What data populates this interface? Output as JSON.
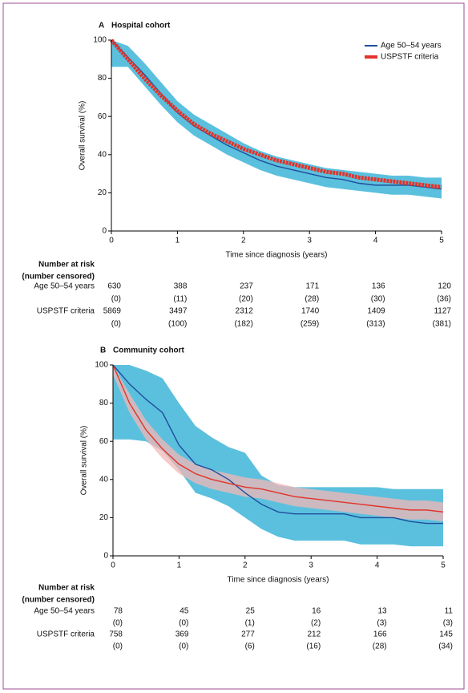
{
  "chart_data": [
    {
      "type": "line",
      "panel": "A",
      "title": "Hospital cohort",
      "x_label": "Time since diagnosis (years)",
      "y_label": "Overall survival (%)",
      "xlim": [
        0,
        5
      ],
      "ylim": [
        0,
        100
      ],
      "xticks": [
        0,
        1,
        2,
        3,
        4,
        5
      ],
      "yticks": [
        0,
        20,
        40,
        60,
        80,
        100
      ],
      "legend": "upper right",
      "x": [
        0,
        0.25,
        0.5,
        0.75,
        1,
        1.25,
        1.5,
        1.75,
        2,
        2.25,
        2.5,
        2.75,
        3,
        3.25,
        3.5,
        3.75,
        4,
        4.25,
        4.5,
        4.75,
        5
      ],
      "series": [
        {
          "name": "Age 50–54 years",
          "color": "#1f4e9c",
          "band_color": "#5bc0de",
          "values": [
            100,
            91,
            82,
            72,
            62,
            55,
            50,
            45,
            41,
            37,
            34,
            32,
            30,
            28,
            27,
            25,
            24,
            24,
            24,
            23,
            22
          ],
          "lower": [
            86,
            86,
            76,
            66,
            57,
            50,
            45,
            40,
            36,
            32,
            29,
            27,
            25,
            23,
            22,
            21,
            20,
            19,
            19,
            18,
            17
          ],
          "upper": [
            100,
            97,
            88,
            78,
            68,
            61,
            56,
            51,
            46,
            42,
            39,
            37,
            35,
            33,
            32,
            31,
            30,
            29,
            29,
            28,
            28
          ]
        },
        {
          "name": "USPSTF criteria",
          "color": "#e2332a",
          "values": [
            100,
            90,
            80,
            71,
            63,
            56,
            51,
            47,
            43,
            40,
            37,
            35,
            33,
            31,
            30,
            28,
            27,
            26,
            25,
            24,
            23
          ]
        }
      ],
      "risk_table": {
        "title": [
          "Number at risk",
          "(number censored)"
        ],
        "rows": [
          {
            "name": "Age 50–54 years",
            "at_risk": [
              630,
              388,
              237,
              171,
              136,
              120
            ],
            "censored": [
              "(0)",
              "(11)",
              "(20)",
              "(28)",
              "(30)",
              "(36)"
            ]
          },
          {
            "name": "USPSTF criteria",
            "at_risk": [
              5869,
              3497,
              2312,
              1740,
              1409,
              1127
            ],
            "censored": [
              "(0)",
              "(100)",
              "(182)",
              "(259)",
              "(313)",
              "(381)"
            ]
          }
        ]
      }
    },
    {
      "type": "line",
      "panel": "B",
      "title": "Community cohort",
      "x_label": "Time since diagnosis (years)",
      "y_label": "Overall survival (%)",
      "xlim": [
        0,
        5
      ],
      "ylim": [
        0,
        100
      ],
      "xticks": [
        0,
        1,
        2,
        3,
        4,
        5
      ],
      "yticks": [
        0,
        20,
        40,
        60,
        80,
        100
      ],
      "x": [
        0,
        0.25,
        0.5,
        0.75,
        1,
        1.25,
        1.5,
        1.75,
        2,
        2.25,
        2.5,
        2.75,
        3,
        3.25,
        3.5,
        3.75,
        4,
        4.25,
        4.5,
        4.75,
        5
      ],
      "series": [
        {
          "name": "Age 50–54 years",
          "color": "#1f4e9c",
          "band_color": "#5bc0de",
          "values": [
            100,
            90,
            82,
            75,
            58,
            48,
            45,
            40,
            33,
            27,
            23,
            22,
            22,
            22,
            22,
            20,
            20,
            20,
            18,
            17,
            17
          ],
          "lower": [
            61,
            61,
            60,
            55,
            45,
            33,
            30,
            26,
            20,
            14,
            10,
            8,
            8,
            8,
            8,
            6,
            6,
            6,
            5,
            5,
            5
          ],
          "upper": [
            100,
            100,
            97,
            93,
            80,
            68,
            62,
            57,
            54,
            42,
            37,
            36,
            36,
            36,
            36,
            36,
            36,
            35,
            35,
            35,
            35
          ]
        },
        {
          "name": "USPSTF criteria",
          "color": "#e2332a",
          "band_color": "#f2b8b5",
          "values": [
            100,
            80,
            66,
            56,
            48,
            43,
            40,
            38,
            36,
            35,
            33,
            31,
            30,
            29,
            28,
            27,
            26,
            25,
            24,
            24,
            23
          ],
          "lower": [
            95,
            75,
            61,
            51,
            43,
            38,
            35,
            33,
            31,
            30,
            28,
            26,
            25,
            24,
            23,
            22,
            21,
            20,
            19,
            19,
            18
          ],
          "upper": [
            100,
            85,
            71,
            61,
            53,
            48,
            45,
            43,
            41,
            40,
            38,
            36,
            35,
            34,
            33,
            32,
            31,
            30,
            29,
            29,
            28
          ]
        }
      ],
      "risk_table": {
        "title": [
          "Number at risk",
          "(number censored)"
        ],
        "rows": [
          {
            "name": "Age 50–54 years",
            "at_risk": [
              78,
              45,
              25,
              16,
              13,
              11
            ],
            "censored": [
              "(0)",
              "(0)",
              "(1)",
              "(2)",
              "(3)",
              "(3)"
            ]
          },
          {
            "name": "USPSTF criteria",
            "at_risk": [
              758,
              369,
              277,
              212,
              166,
              145
            ],
            "censored": [
              "(0)",
              "(0)",
              "(6)",
              "(16)",
              "(28)",
              "(34)"
            ]
          }
        ]
      }
    }
  ]
}
